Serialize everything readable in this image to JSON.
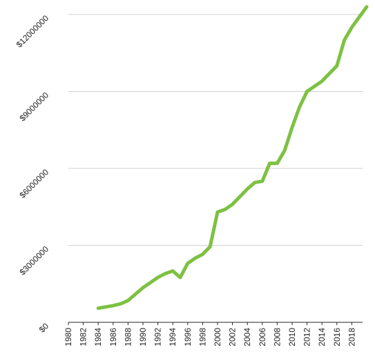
{
  "chart_data": {
    "type": "line",
    "x": [
      1984,
      1985,
      1986,
      1987,
      1988,
      1989,
      1990,
      1991,
      1992,
      1993,
      1994,
      1995,
      1996,
      1997,
      1998,
      1999,
      2000,
      2001,
      2002,
      2003,
      2004,
      2005,
      2006,
      2007,
      2008,
      2009,
      2010,
      2011,
      2012,
      2013,
      2014,
      2015,
      2016,
      2017,
      2018,
      2019,
      2020
    ],
    "series": [
      {
        "color": "#7dc142",
        "values": [
          550000,
          600000,
          650000,
          720000,
          850000,
          1100000,
          1350000,
          1550000,
          1750000,
          1900000,
          2000000,
          1750000,
          2300000,
          2500000,
          2650000,
          2950000,
          4300000,
          4400000,
          4600000,
          4900000,
          5200000,
          5450000,
          5500000,
          6200000,
          6200000,
          6700000,
          7600000,
          8400000,
          9000000,
          9200000,
          9400000,
          9700000,
          10000000,
          11000000,
          11500000,
          11900000,
          12300000
        ]
      }
    ],
    "xlim": [
      1980,
      2020
    ],
    "xticks": [
      1980,
      1982,
      1984,
      1986,
      1988,
      1990,
      1992,
      1994,
      1996,
      1998,
      2000,
      2002,
      2004,
      2006,
      2008,
      2010,
      2012,
      2014,
      2016,
      2018
    ],
    "ylim": [
      0,
      12000000
    ],
    "yticks": [
      {
        "value": 0,
        "label": "$0"
      },
      {
        "value": 3000000,
        "label": "$3000000"
      },
      {
        "value": 6000000,
        "label": "$6000000"
      },
      {
        "value": 9000000,
        "label": "$9000000"
      },
      {
        "value": 12000000,
        "label": "$12000000"
      }
    ],
    "grid": true
  }
}
